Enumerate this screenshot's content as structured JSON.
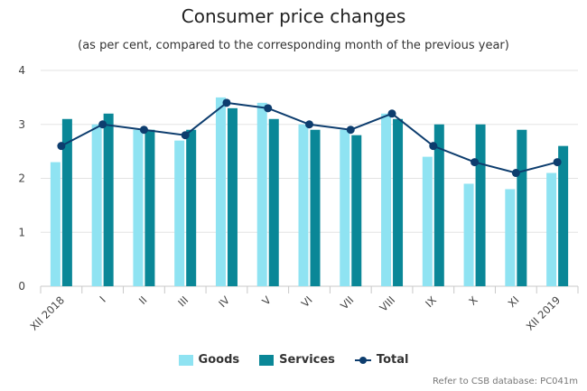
{
  "chart_data": {
    "type": "bar",
    "title": "Consumer price changes",
    "subtitle": "(as per cent, compared to the corresponding month of the previous year)",
    "categories": [
      "XII 2018",
      "I",
      "II",
      "III",
      "IV",
      "V",
      "VI",
      "VII",
      "VIII",
      "IX",
      "X",
      "XI",
      "XII 2019"
    ],
    "series": [
      {
        "name": "Goods",
        "type": "bar",
        "color": "#8fe3f2",
        "values": [
          2.3,
          3.0,
          2.9,
          2.7,
          3.5,
          3.4,
          3.0,
          2.9,
          3.2,
          2.4,
          1.9,
          1.8,
          2.1
        ]
      },
      {
        "name": "Services",
        "type": "bar",
        "color": "#0a8797",
        "values": [
          3.1,
          3.2,
          2.9,
          2.9,
          3.3,
          3.1,
          2.9,
          2.8,
          3.1,
          3.0,
          3.0,
          2.9,
          2.6
        ]
      },
      {
        "name": "Total",
        "type": "line",
        "color": "#0d3d6e",
        "values": [
          2.6,
          3.0,
          2.9,
          2.8,
          3.4,
          3.3,
          3.0,
          2.9,
          3.2,
          2.6,
          2.3,
          2.1,
          2.3
        ]
      }
    ],
    "y_ticks": [
      "0",
      "1",
      "2",
      "3",
      "4"
    ],
    "ylim": [
      0,
      4
    ],
    "grid": true,
    "legend_position": "bottom-center",
    "credits": "Refer to CSB database: PC041m"
  }
}
